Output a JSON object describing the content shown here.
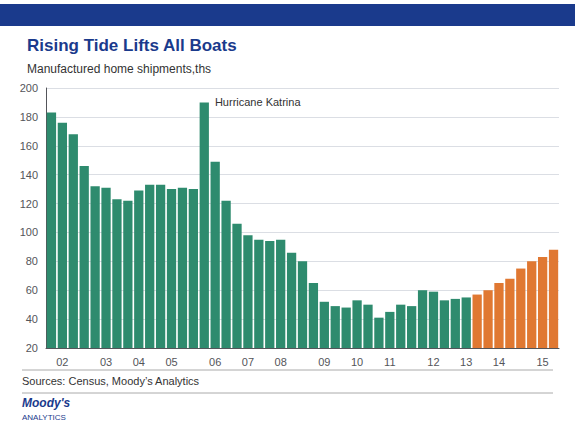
{
  "chart_data": {
    "type": "bar",
    "title": "Rising Tide Lifts All Boats",
    "subtitle": "Manufactured home shipments,ths",
    "annotation": "Hurricane Katrina",
    "annotation_index": 14,
    "sources": "Sources: Census, Moody’s Analytics",
    "logo": [
      "Moody's",
      "ANALYTICS"
    ],
    "header_color": "#1a3a8c",
    "title_color": "#1a3a8c",
    "categories": [
      null,
      "02",
      null,
      null,
      null,
      "03",
      null,
      null,
      "04",
      null,
      null,
      "05",
      null,
      null,
      null,
      "06",
      null,
      null,
      "07",
      null,
      null,
      "08",
      null,
      null,
      null,
      "09",
      null,
      null,
      "10",
      null,
      null,
      "11",
      null,
      null,
      null,
      "12",
      null,
      null,
      "13",
      null,
      null,
      "14",
      null,
      null,
      null,
      "15",
      null
    ],
    "values": [
      183,
      176,
      168,
      146,
      132,
      131,
      123,
      122,
      129,
      133,
      133,
      130,
      131,
      130,
      190,
      149,
      122,
      106,
      98,
      95,
      94,
      95,
      86,
      80,
      65,
      52,
      49,
      48,
      53,
      50,
      41,
      45,
      50,
      49,
      60,
      59,
      53,
      54,
      55,
      57,
      60,
      65,
      68,
      75,
      80,
      83,
      88
    ],
    "colors": [
      "#2e8b6e",
      "#2e8b6e",
      "#2e8b6e",
      "#2e8b6e",
      "#2e8b6e",
      "#2e8b6e",
      "#2e8b6e",
      "#2e8b6e",
      "#2e8b6e",
      "#2e8b6e",
      "#2e8b6e",
      "#2e8b6e",
      "#2e8b6e",
      "#2e8b6e",
      "#2e8b6e",
      "#2e8b6e",
      "#2e8b6e",
      "#2e8b6e",
      "#2e8b6e",
      "#2e8b6e",
      "#2e8b6e",
      "#2e8b6e",
      "#2e8b6e",
      "#2e8b6e",
      "#2e8b6e",
      "#2e8b6e",
      "#2e8b6e",
      "#2e8b6e",
      "#2e8b6e",
      "#2e8b6e",
      "#2e8b6e",
      "#2e8b6e",
      "#2e8b6e",
      "#2e8b6e",
      "#2e8b6e",
      "#2e8b6e",
      "#2e8b6e",
      "#2e8b6e",
      "#2e8b6e",
      "#e07832",
      "#e07832",
      "#e07832",
      "#e07832",
      "#e07832",
      "#e07832",
      "#e07832",
      "#e07832"
    ],
    "ylim": [
      20,
      200
    ],
    "yticks": [
      20,
      40,
      60,
      80,
      100,
      120,
      140,
      160,
      180,
      200
    ],
    "grid": true
  }
}
